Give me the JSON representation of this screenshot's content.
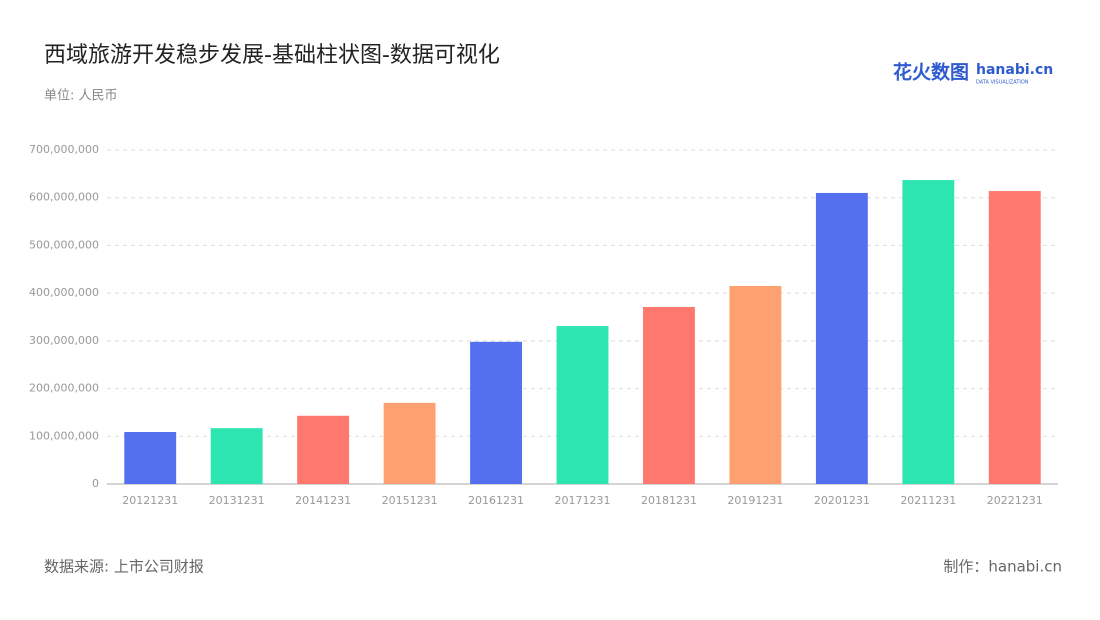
{
  "chart_data": {
    "type": "bar",
    "title": "西域旅游开发稳步发展-基础柱状图-数据可视化",
    "subtitle": "单位: 人民币",
    "source": "数据来源: 上市公司财报",
    "credit": "制作：hanabi.cn",
    "logo": {
      "name": "花火数图",
      "site": "hanabi.cn",
      "tagline": "DATA VISUALIZATION"
    },
    "categories": [
      "20121231",
      "20131231",
      "20141231",
      "20151231",
      "20161231",
      "20171231",
      "20181231",
      "20191231",
      "20201231",
      "20211231",
      "20221231"
    ],
    "values": [
      109000000,
      117000000,
      143000000,
      170000000,
      298000000,
      331000000,
      371000000,
      415000000,
      610000000,
      637000000,
      614000000
    ],
    "colors": [
      "#5470ee",
      "#2de5b0",
      "#ff7870",
      "#ffa070",
      "#5470ee",
      "#2de5b0",
      "#ff7870",
      "#ffa070",
      "#5470ee",
      "#2de5b0",
      "#ff7870"
    ],
    "ylim": [
      0,
      700000000
    ],
    "yticks": [
      0,
      {
        "value": 100000000,
        "label": "100,000,000"
      },
      {
        "value": 200000000,
        "label": "200,000,000"
      },
      {
        "value": 300000000,
        "label": "300,000,000"
      },
      {
        "value": 400000000,
        "label": "400,000,000"
      },
      {
        "value": 500000000,
        "label": "500,000,000"
      },
      {
        "value": 600000000,
        "label": "600,000,000"
      },
      {
        "value": 700000000,
        "label": "700,000,000"
      }
    ],
    "grid": true
  }
}
